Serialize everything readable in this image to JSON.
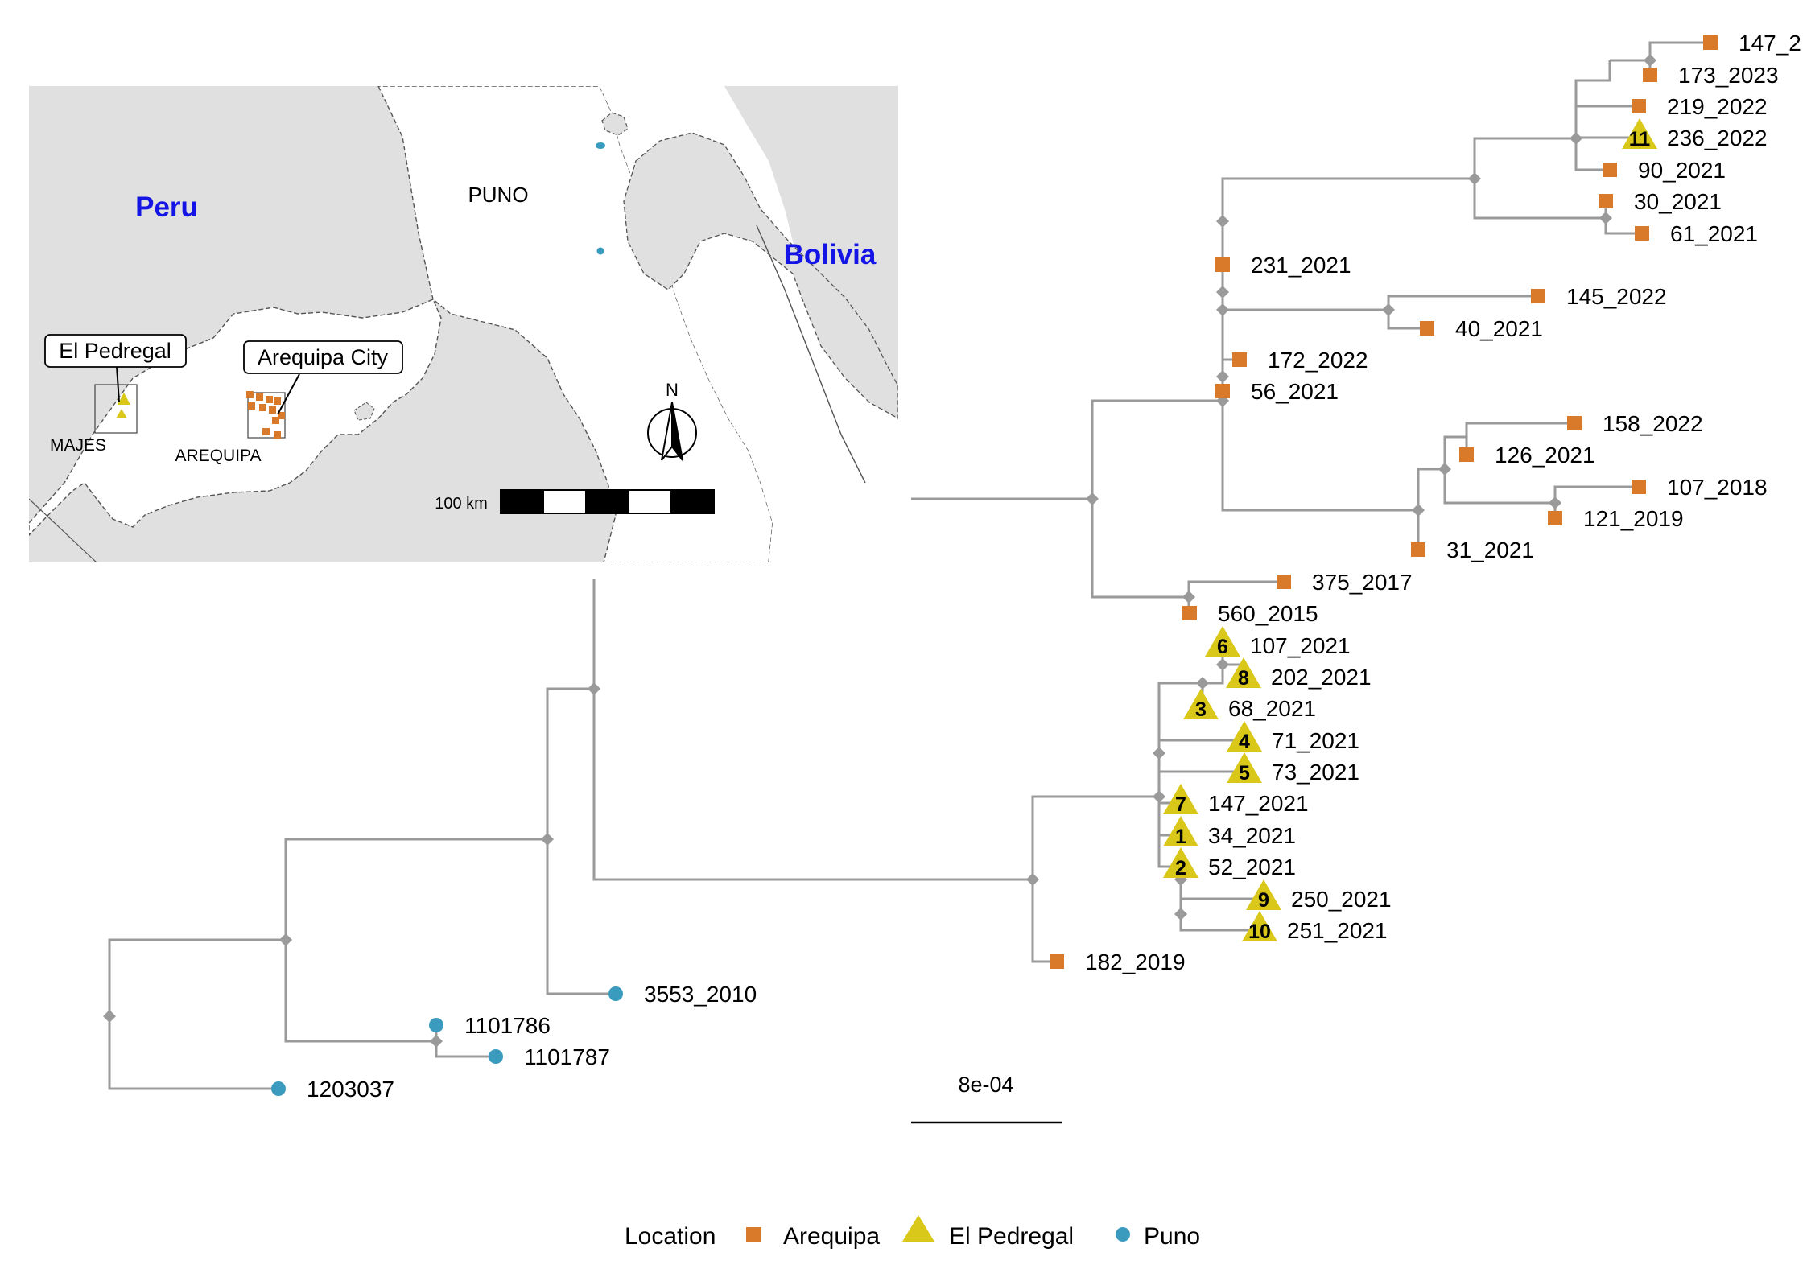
{
  "map": {
    "labels": {
      "peru": "Peru",
      "bolivia": "Bolivia",
      "puno": "PUNO",
      "arequipa_region": "AREQUIPA",
      "majes": "MAJES",
      "north": "N",
      "scale": "100 km"
    },
    "callouts": {
      "el_pedregal": "El Pedregal",
      "arequipa_city": "Arequipa City"
    }
  },
  "tree": {
    "scale_bar_label": "8e-04",
    "tips": [
      {
        "id": "t1",
        "label": "147_2",
        "location": "Arequipa",
        "badge": ""
      },
      {
        "id": "t2",
        "label": "173_2023",
        "location": "Arequipa",
        "badge": ""
      },
      {
        "id": "t3",
        "label": "219_2022",
        "location": "Arequipa",
        "badge": ""
      },
      {
        "id": "t4",
        "label": "236_2022",
        "location": "El Pedregal",
        "badge": "11"
      },
      {
        "id": "t5",
        "label": "90_2021",
        "location": "Arequipa",
        "badge": ""
      },
      {
        "id": "t6",
        "label": "30_2021",
        "location": "Arequipa",
        "badge": ""
      },
      {
        "id": "t7",
        "label": "61_2021",
        "location": "Arequipa",
        "badge": ""
      },
      {
        "id": "t8",
        "label": "231_2021",
        "location": "Arequipa",
        "badge": ""
      },
      {
        "id": "t9",
        "label": "145_2022",
        "location": "Arequipa",
        "badge": ""
      },
      {
        "id": "t10",
        "label": "40_2021",
        "location": "Arequipa",
        "badge": ""
      },
      {
        "id": "t11",
        "label": "172_2022",
        "location": "Arequipa",
        "badge": ""
      },
      {
        "id": "t12",
        "label": "56_2021",
        "location": "Arequipa",
        "badge": ""
      },
      {
        "id": "t13",
        "label": "158_2022",
        "location": "Arequipa",
        "badge": ""
      },
      {
        "id": "t14",
        "label": "126_2021",
        "location": "Arequipa",
        "badge": ""
      },
      {
        "id": "t15",
        "label": "107_2018",
        "location": "Arequipa",
        "badge": ""
      },
      {
        "id": "t16",
        "label": "121_2019",
        "location": "Arequipa",
        "badge": ""
      },
      {
        "id": "t17",
        "label": "31_2021",
        "location": "Arequipa",
        "badge": ""
      },
      {
        "id": "t18",
        "label": "375_2017",
        "location": "Arequipa",
        "badge": ""
      },
      {
        "id": "t19",
        "label": "560_2015",
        "location": "Arequipa",
        "badge": ""
      },
      {
        "id": "t20",
        "label": "107_2021",
        "location": "El Pedregal",
        "badge": "6"
      },
      {
        "id": "t21",
        "label": "202_2021",
        "location": "El Pedregal",
        "badge": "8"
      },
      {
        "id": "t22",
        "label": "68_2021",
        "location": "El Pedregal",
        "badge": "3"
      },
      {
        "id": "t23",
        "label": "71_2021",
        "location": "El Pedregal",
        "badge": "4"
      },
      {
        "id": "t24",
        "label": "73_2021",
        "location": "El Pedregal",
        "badge": "5"
      },
      {
        "id": "t25",
        "label": "147_2021",
        "location": "El Pedregal",
        "badge": "7"
      },
      {
        "id": "t26",
        "label": "34_2021",
        "location": "El Pedregal",
        "badge": "1"
      },
      {
        "id": "t27",
        "label": "52_2021",
        "location": "El Pedregal",
        "badge": "2"
      },
      {
        "id": "t28",
        "label": "250_2021",
        "location": "El Pedregal",
        "badge": "9"
      },
      {
        "id": "t29",
        "label": "251_2021",
        "location": "El Pedregal",
        "badge": "10"
      },
      {
        "id": "t30",
        "label": "182_2019",
        "location": "Arequipa",
        "badge": ""
      },
      {
        "id": "t31",
        "label": "3553_2010",
        "location": "Puno",
        "badge": ""
      },
      {
        "id": "t32",
        "label": "1101786",
        "location": "Puno",
        "badge": ""
      },
      {
        "id": "t33",
        "label": "1101787",
        "location": "Puno",
        "badge": ""
      },
      {
        "id": "t34",
        "label": "1203037",
        "location": "Puno",
        "badge": ""
      }
    ]
  },
  "legend": {
    "title": "Location",
    "items": [
      {
        "label": "Arequipa",
        "shape": "square",
        "color": "#d97a2b"
      },
      {
        "label": "El Pedregal",
        "shape": "triangle",
        "color": "#d9c81a"
      },
      {
        "label": "Puno",
        "shape": "circle",
        "color": "#3a9bbf"
      }
    ]
  },
  "colors": {
    "arequipa": "#d97a2b",
    "el_pedregal": "#d9c81a",
    "puno": "#3a9bbf",
    "branch": "#9a9a9a",
    "country_label": "#1414e6",
    "land_gray": "#e0e0e0"
  }
}
